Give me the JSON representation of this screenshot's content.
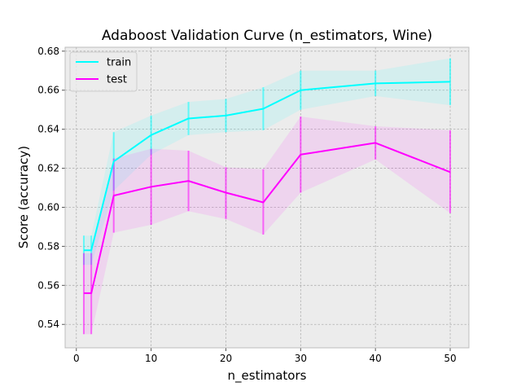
{
  "chart_data": {
    "type": "line",
    "title": "Adaboost Validation Curve (n_estimators, Wine)",
    "xlabel": "n_estimators",
    "ylabel": "Score (accuracy)",
    "xlim": [
      -1.5,
      52.5
    ],
    "ylim": [
      0.528,
      0.682
    ],
    "xticks": [
      0,
      10,
      20,
      30,
      40,
      50
    ],
    "yticks": [
      0.54,
      0.56,
      0.58,
      0.6,
      0.62,
      0.64,
      0.66,
      0.68
    ],
    "ytick_labels": [
      "0.54",
      "0.56",
      "0.58",
      "0.60",
      "0.62",
      "0.64",
      "0.66",
      "0.68"
    ],
    "grid": true,
    "legend_position": "top-left",
    "x": [
      1,
      2,
      5,
      10,
      15,
      20,
      25,
      30,
      40,
      50
    ],
    "series": [
      {
        "name": "train",
        "color": "#00ffff",
        "values": [
          0.578,
          0.578,
          0.6235,
          0.637,
          0.6455,
          0.647,
          0.6505,
          0.66,
          0.6635,
          0.6643
        ],
        "lower": [
          0.5705,
          0.5705,
          0.6085,
          0.627,
          0.637,
          0.6385,
          0.6395,
          0.65,
          0.657,
          0.6523
        ],
        "upper": [
          0.5855,
          0.5855,
          0.6385,
          0.647,
          0.654,
          0.6555,
          0.6615,
          0.67,
          0.67,
          0.6763
        ]
      },
      {
        "name": "test",
        "color": "#ff00ff",
        "values": [
          0.556,
          0.556,
          0.606,
          0.6105,
          0.6135,
          0.6075,
          0.6025,
          0.627,
          0.633,
          0.618
        ],
        "lower": [
          0.535,
          0.535,
          0.587,
          0.591,
          0.598,
          0.594,
          0.586,
          0.6075,
          0.6245,
          0.597
        ],
        "upper": [
          0.5765,
          0.5765,
          0.625,
          0.63,
          0.629,
          0.6205,
          0.6195,
          0.6465,
          0.6415,
          0.6395
        ]
      }
    ]
  }
}
